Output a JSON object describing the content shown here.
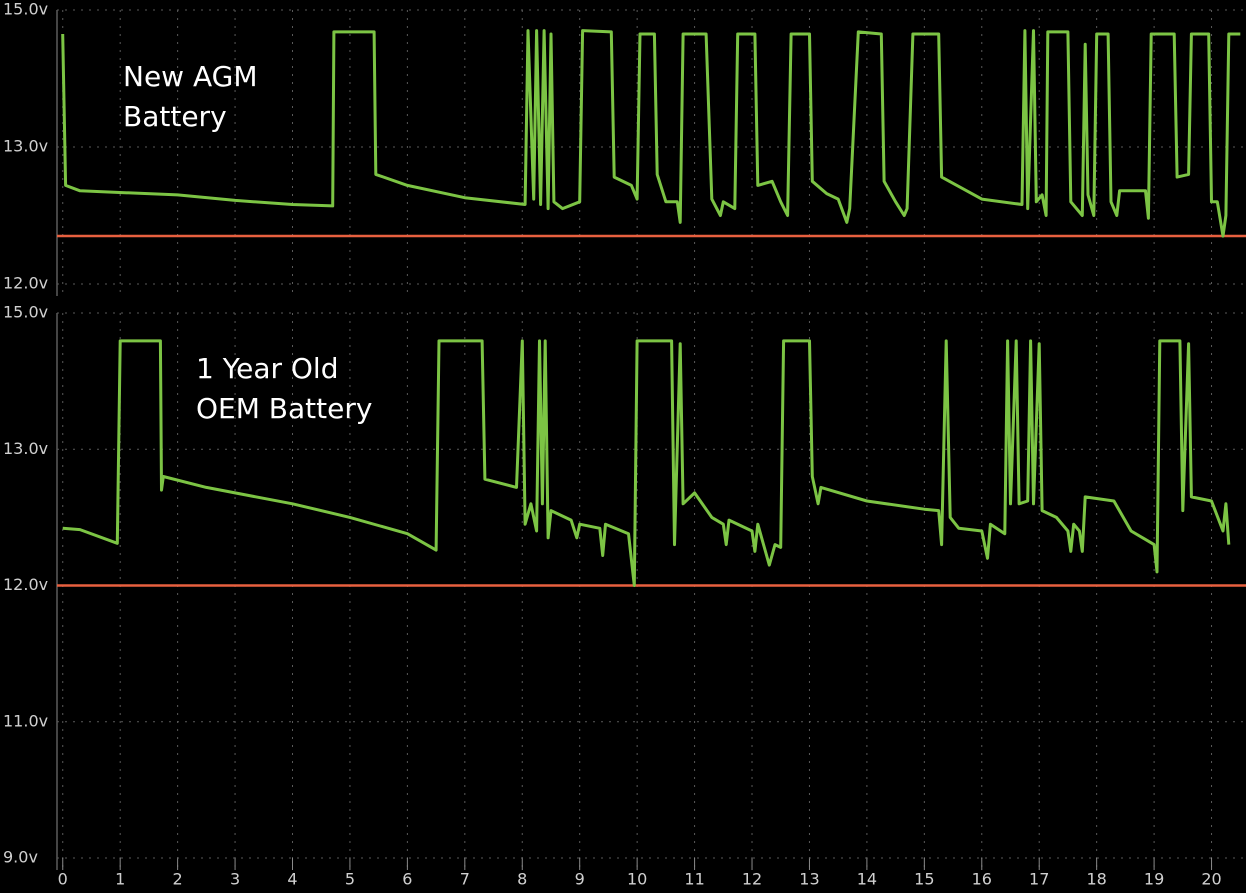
{
  "chart_data": [
    {
      "type": "line",
      "annotation": [
        "New AGM",
        "Battery"
      ],
      "color": "#7cc444",
      "threshold": 12.35,
      "threshold_color": "#e8603f",
      "xlim": [
        -0.1,
        20.6
      ],
      "xticks": [
        0,
        1,
        2,
        3,
        4,
        5,
        6,
        7,
        8,
        9,
        10,
        11,
        12,
        13,
        14,
        15,
        16,
        17,
        18,
        19,
        20
      ],
      "ylim": [
        12,
        15
      ],
      "yticks": [
        {
          "value": 12,
          "label": "12.0v"
        },
        {
          "value": 13,
          "label": "13.0v"
        },
        {
          "value": 15,
          "label": "15.0v"
        }
      ],
      "x": [
        0,
        0.05,
        0.3,
        2,
        3,
        4,
        4.7,
        4.72,
        5.42,
        5.45,
        6,
        7,
        8.05,
        8.1,
        8.2,
        8.25,
        8.32,
        8.38,
        8.45,
        8.5,
        8.55,
        8.7,
        9.0,
        9.05,
        9.55,
        9.6,
        9.9,
        10.0,
        10.05,
        10.3,
        10.35,
        10.5,
        10.7,
        10.75,
        10.8,
        11.2,
        11.3,
        11.45,
        11.5,
        11.7,
        11.75,
        12.05,
        12.1,
        12.35,
        12.5,
        12.62,
        12.68,
        13.0,
        13.05,
        13.3,
        13.5,
        13.65,
        13.7,
        13.85,
        14.25,
        14.3,
        14.5,
        14.65,
        14.7,
        14.8,
        15.25,
        15.3,
        16,
        16.7,
        16.75,
        16.8,
        16.9,
        16.95,
        17.05,
        17.12,
        17.15,
        17.5,
        17.55,
        17.75,
        17.8,
        17.85,
        17.95,
        18.0,
        18.2,
        18.25,
        18.35,
        18.4,
        18.85,
        18.9,
        18.95,
        19.35,
        19.4,
        19.6,
        19.65,
        19.95,
        20.0,
        20.1,
        20.2,
        20.25,
        20.3,
        20.5
      ],
      "values": [
        14.65,
        12.72,
        12.68,
        12.65,
        12.61,
        12.58,
        12.57,
        14.68,
        14.68,
        12.8,
        12.72,
        12.63,
        12.58,
        14.7,
        12.62,
        14.7,
        12.58,
        14.7,
        12.55,
        14.65,
        12.6,
        12.55,
        12.6,
        14.7,
        14.68,
        12.78,
        12.72,
        12.62,
        14.65,
        14.65,
        12.8,
        12.6,
        12.6,
        12.45,
        14.65,
        14.65,
        12.62,
        12.5,
        12.6,
        12.55,
        14.65,
        14.65,
        12.72,
        12.75,
        12.6,
        12.5,
        14.65,
        14.65,
        12.75,
        12.66,
        12.62,
        12.45,
        12.55,
        14.68,
        14.65,
        12.75,
        12.6,
        12.5,
        12.55,
        14.65,
        14.65,
        12.78,
        12.62,
        12.58,
        14.7,
        12.55,
        14.7,
        12.6,
        12.65,
        12.5,
        14.68,
        14.68,
        12.6,
        12.5,
        14.5,
        12.65,
        12.5,
        14.65,
        14.65,
        12.6,
        12.5,
        12.68,
        12.68,
        12.48,
        14.65,
        14.65,
        12.78,
        12.8,
        14.65,
        14.65,
        12.6,
        12.6,
        12.35,
        12.5,
        14.65,
        14.65
      ]
    },
    {
      "type": "line",
      "annotation": [
        "1 Year Old",
        "OEM Battery"
      ],
      "color": "#7cc444",
      "threshold": 12.0,
      "threshold_color": "#e8603f",
      "xlim": [
        -0.1,
        20.6
      ],
      "xticks": [
        0,
        1,
        2,
        3,
        4,
        5,
        6,
        7,
        8,
        9,
        10,
        11,
        12,
        13,
        14,
        15,
        16,
        17,
        18,
        19,
        20
      ],
      "ylim": [
        9,
        15
      ],
      "yticks": [
        {
          "value": 9,
          "label": "9.0v"
        },
        {
          "value": 11,
          "label": "11.0v"
        },
        {
          "value": 12,
          "label": "12.0v"
        },
        {
          "value": 13,
          "label": "13.0v"
        },
        {
          "value": 15,
          "label": "15.0v"
        }
      ],
      "x": [
        0,
        0.3,
        0.95,
        1.0,
        1.7,
        1.72,
        1.75,
        2.5,
        4,
        5,
        6,
        6.5,
        6.55,
        7.3,
        7.35,
        7.9,
        8.0,
        8.05,
        8.15,
        8.25,
        8.3,
        8.35,
        8.4,
        8.45,
        8.5,
        8.85,
        8.95,
        9.0,
        9.35,
        9.4,
        9.45,
        9.85,
        9.95,
        10.0,
        10.6,
        10.65,
        10.75,
        10.8,
        11.0,
        11.3,
        11.5,
        11.55,
        11.6,
        12.0,
        12.05,
        12.1,
        12.3,
        12.4,
        12.5,
        12.55,
        13.0,
        13.05,
        13.15,
        13.2,
        14.0,
        15.0,
        15.25,
        15.3,
        15.38,
        15.45,
        15.6,
        16.0,
        16.1,
        16.15,
        16.4,
        16.45,
        16.5,
        16.6,
        16.65,
        16.8,
        16.85,
        16.9,
        17.0,
        17.05,
        17.3,
        17.5,
        17.55,
        17.6,
        17.7,
        17.75,
        17.8,
        18.3,
        18.6,
        19.0,
        19.05,
        19.1,
        19.45,
        19.5,
        19.6,
        19.65,
        20.0,
        20.2,
        20.25,
        20.3
      ],
      "values": [
        12.42,
        12.41,
        12.31,
        14.59,
        14.59,
        12.7,
        12.8,
        12.72,
        12.6,
        12.5,
        12.38,
        12.26,
        14.59,
        14.59,
        12.78,
        12.72,
        14.59,
        12.45,
        12.6,
        12.4,
        14.59,
        12.6,
        14.59,
        12.35,
        12.55,
        12.48,
        12.35,
        12.45,
        12.42,
        12.22,
        12.45,
        12.38,
        12.0,
        14.59,
        14.59,
        12.3,
        14.55,
        12.6,
        12.68,
        12.5,
        12.45,
        12.3,
        12.48,
        12.4,
        12.25,
        12.45,
        12.15,
        12.3,
        12.28,
        14.59,
        14.59,
        12.8,
        12.6,
        12.72,
        12.62,
        12.56,
        12.55,
        12.3,
        14.59,
        12.5,
        12.42,
        12.4,
        12.2,
        12.45,
        12.38,
        14.59,
        12.6,
        14.59,
        12.6,
        12.62,
        14.59,
        12.6,
        14.55,
        12.55,
        12.5,
        12.4,
        12.25,
        12.45,
        12.4,
        12.25,
        12.65,
        12.62,
        12.4,
        12.3,
        12.1,
        14.59,
        14.59,
        12.55,
        14.55,
        12.65,
        12.62,
        12.4,
        12.6,
        12.3
      ]
    }
  ]
}
